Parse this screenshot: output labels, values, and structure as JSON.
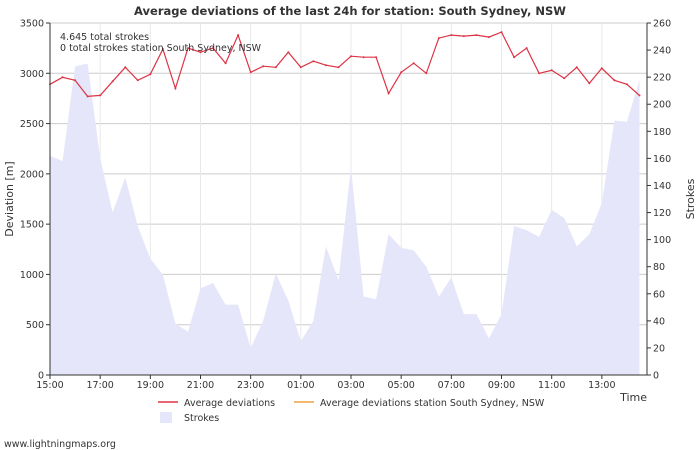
{
  "chart_data": {
    "type": "line",
    "title": "Average deviations of the last 24h for station: South Sydney, NSW",
    "xlabel": "Time",
    "ylabel": "Deviation  [m]",
    "y2label": "Strokes",
    "ylim": [
      0,
      3500
    ],
    "y2lim": [
      0,
      260
    ],
    "yticks": [
      0,
      500,
      1000,
      1500,
      2000,
      2500,
      3000,
      3500
    ],
    "y2ticks": [
      0,
      20,
      40,
      60,
      80,
      100,
      120,
      140,
      160,
      180,
      200,
      220,
      240,
      260
    ],
    "xrange": [
      15,
      38.8
    ],
    "xticks": [
      {
        "t": 15,
        "label": "15:00"
      },
      {
        "t": 17,
        "label": "17:00"
      },
      {
        "t": 19,
        "label": "19:00"
      },
      {
        "t": 21,
        "label": "21:00"
      },
      {
        "t": 23,
        "label": "23:00"
      },
      {
        "t": 25,
        "label": "01:00"
      },
      {
        "t": 27,
        "label": "03:00"
      },
      {
        "t": 29,
        "label": "05:00"
      },
      {
        "t": 31,
        "label": "07:00"
      },
      {
        "t": 33,
        "label": "09:00"
      },
      {
        "t": 35,
        "label": "11:00"
      },
      {
        "t": 37,
        "label": "13:00"
      }
    ],
    "annotations": [
      "4.645 total strokes",
      "0 total strokes station South Sydney, NSW"
    ],
    "legend": [
      {
        "name": "Average deviations",
        "color": "#dd3344",
        "kind": "line"
      },
      {
        "name": "Average deviations station South Sydney, NSW",
        "color": "#f0a040",
        "kind": "line"
      },
      {
        "name": "Strokes",
        "color": "#e6e6fa",
        "kind": "area"
      }
    ],
    "series": [
      {
        "name": "Average deviations",
        "axis": "left",
        "x": [
          15.0,
          15.5,
          16.0,
          16.5,
          17.0,
          17.5,
          18.0,
          18.5,
          19.0,
          19.5,
          20.0,
          20.5,
          21.0,
          21.5,
          22.0,
          22.5,
          23.0,
          23.5,
          24.0,
          24.5,
          25.0,
          25.5,
          26.0,
          26.5,
          27.0,
          27.5,
          28.0,
          28.5,
          29.0,
          29.5,
          30.0,
          30.5,
          31.0,
          31.5,
          32.0,
          32.5,
          33.0,
          33.5,
          34.0,
          34.5,
          35.0,
          35.5,
          36.0,
          36.5,
          37.0,
          37.5,
          38.0,
          38.5
        ],
        "values": [
          2890,
          2960,
          2930,
          2770,
          2780,
          2920,
          3060,
          2930,
          2990,
          3240,
          2850,
          3250,
          3210,
          3250,
          3100,
          3380,
          3010,
          3070,
          3060,
          3210,
          3060,
          3120,
          3080,
          3060,
          3170,
          3160,
          3160,
          2800,
          3010,
          3100,
          3000,
          3350,
          3380,
          3370,
          3380,
          3360,
          3410,
          3160,
          3250,
          3000,
          3030,
          2950,
          3060,
          2900,
          3050,
          2930,
          2890,
          2780
        ]
      },
      {
        "name": "Average deviations station South Sydney, NSW",
        "axis": "left",
        "x": [],
        "values": []
      },
      {
        "name": "Strokes",
        "axis": "right",
        "x": [
          15.0,
          15.5,
          16.0,
          16.5,
          17.0,
          17.5,
          18.0,
          18.5,
          19.0,
          19.5,
          20.0,
          20.5,
          21.0,
          21.5,
          22.0,
          22.5,
          23.0,
          23.5,
          24.0,
          24.5,
          25.0,
          25.5,
          26.0,
          26.5,
          27.0,
          27.5,
          28.0,
          28.5,
          29.0,
          29.5,
          30.0,
          30.5,
          31.0,
          31.5,
          32.0,
          32.5,
          33.0,
          33.5,
          34.0,
          34.5,
          35.0,
          35.5,
          36.0,
          36.5,
          37.0,
          37.5,
          38.0,
          38.5
        ],
        "values": [
          162,
          158,
          228,
          230,
          160,
          120,
          146,
          110,
          86,
          74,
          38,
          32,
          64,
          68,
          52,
          52,
          20,
          40,
          75,
          55,
          25,
          40,
          95,
          70,
          154,
          58,
          56,
          104,
          94,
          92,
          80,
          58,
          72,
          45,
          45,
          27,
          45,
          110,
          107,
          102,
          122,
          116,
          95,
          104,
          127,
          188,
          187,
          218
        ]
      }
    ]
  },
  "footer": {
    "credit": "www.lightningmaps.org"
  }
}
